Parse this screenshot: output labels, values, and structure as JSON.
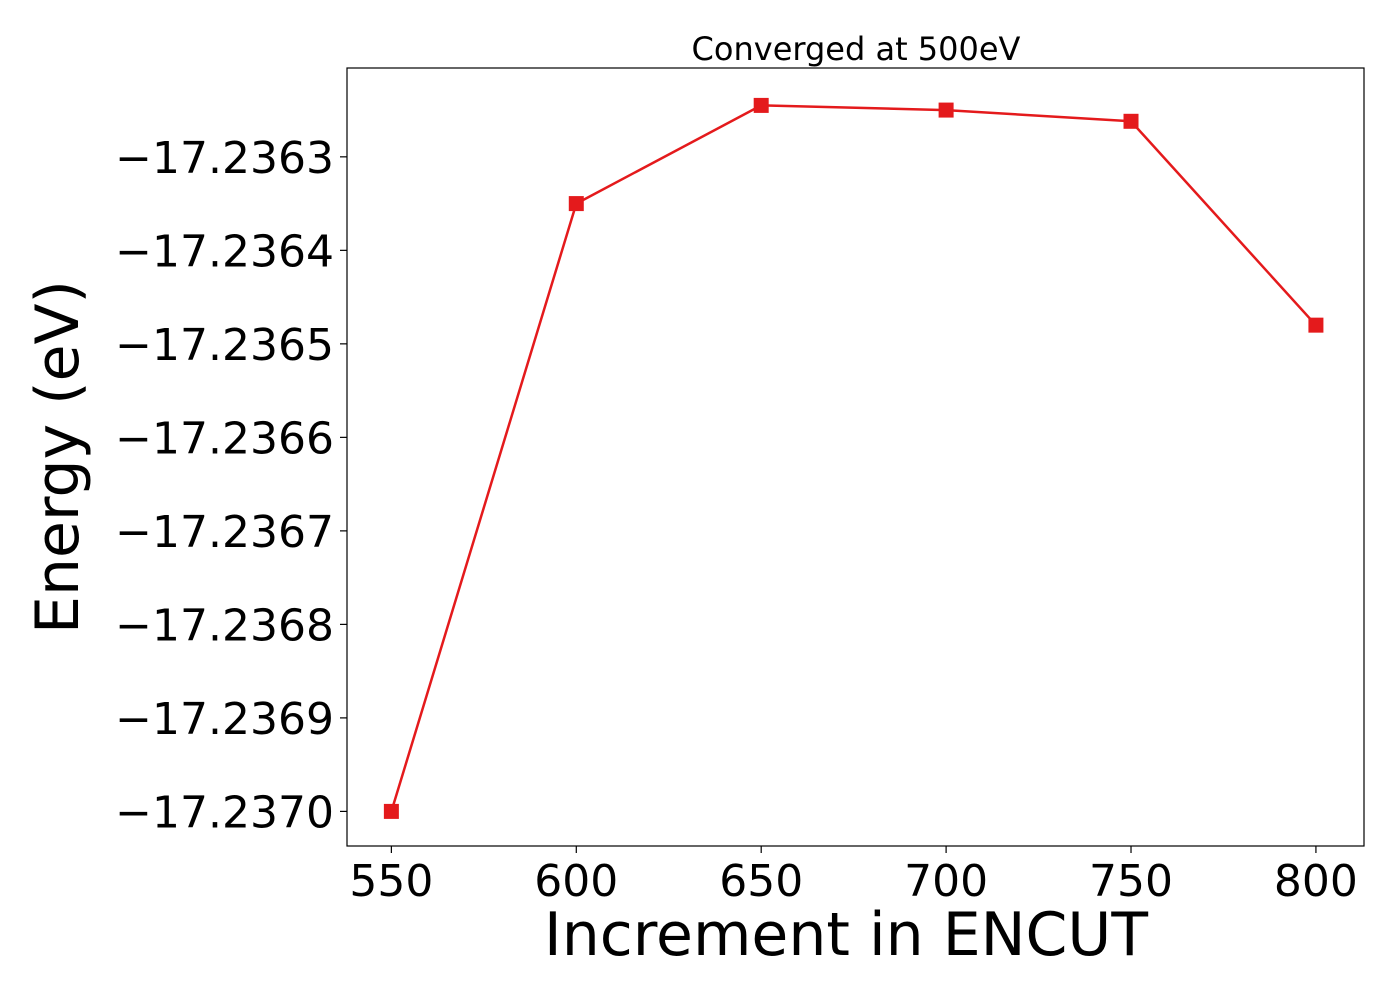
{
  "chart_data": {
    "type": "line",
    "title": "Converged at 500eV",
    "xlabel": "Increment in ENCUT",
    "ylabel": "Energy (eV)",
    "x": [
      550,
      600,
      650,
      700,
      750,
      800
    ],
    "series": [
      {
        "values": [
          -17.237,
          -17.23635,
          -17.236245,
          -17.23625,
          -17.236262,
          -17.23648
        ],
        "color": "#e41a1c",
        "marker": "square"
      }
    ],
    "xlim": [
      538,
      813
    ],
    "ylim": [
      -17.237037,
      -17.236205
    ],
    "xticks": [
      550,
      600,
      650,
      700,
      750,
      800
    ],
    "xtick_labels": [
      "550",
      "600",
      "650",
      "700",
      "750",
      "800"
    ],
    "yticks": [
      -17.237,
      -17.2369,
      -17.2368,
      -17.2367,
      -17.2366,
      -17.2365,
      -17.2364,
      -17.2363
    ],
    "ytick_labels": [
      "−17.2370",
      "−17.2369",
      "−17.2368",
      "−17.2367",
      "−17.2366",
      "−17.2365",
      "−17.2364",
      "−17.2363"
    ],
    "grid": false,
    "legend": "none"
  }
}
